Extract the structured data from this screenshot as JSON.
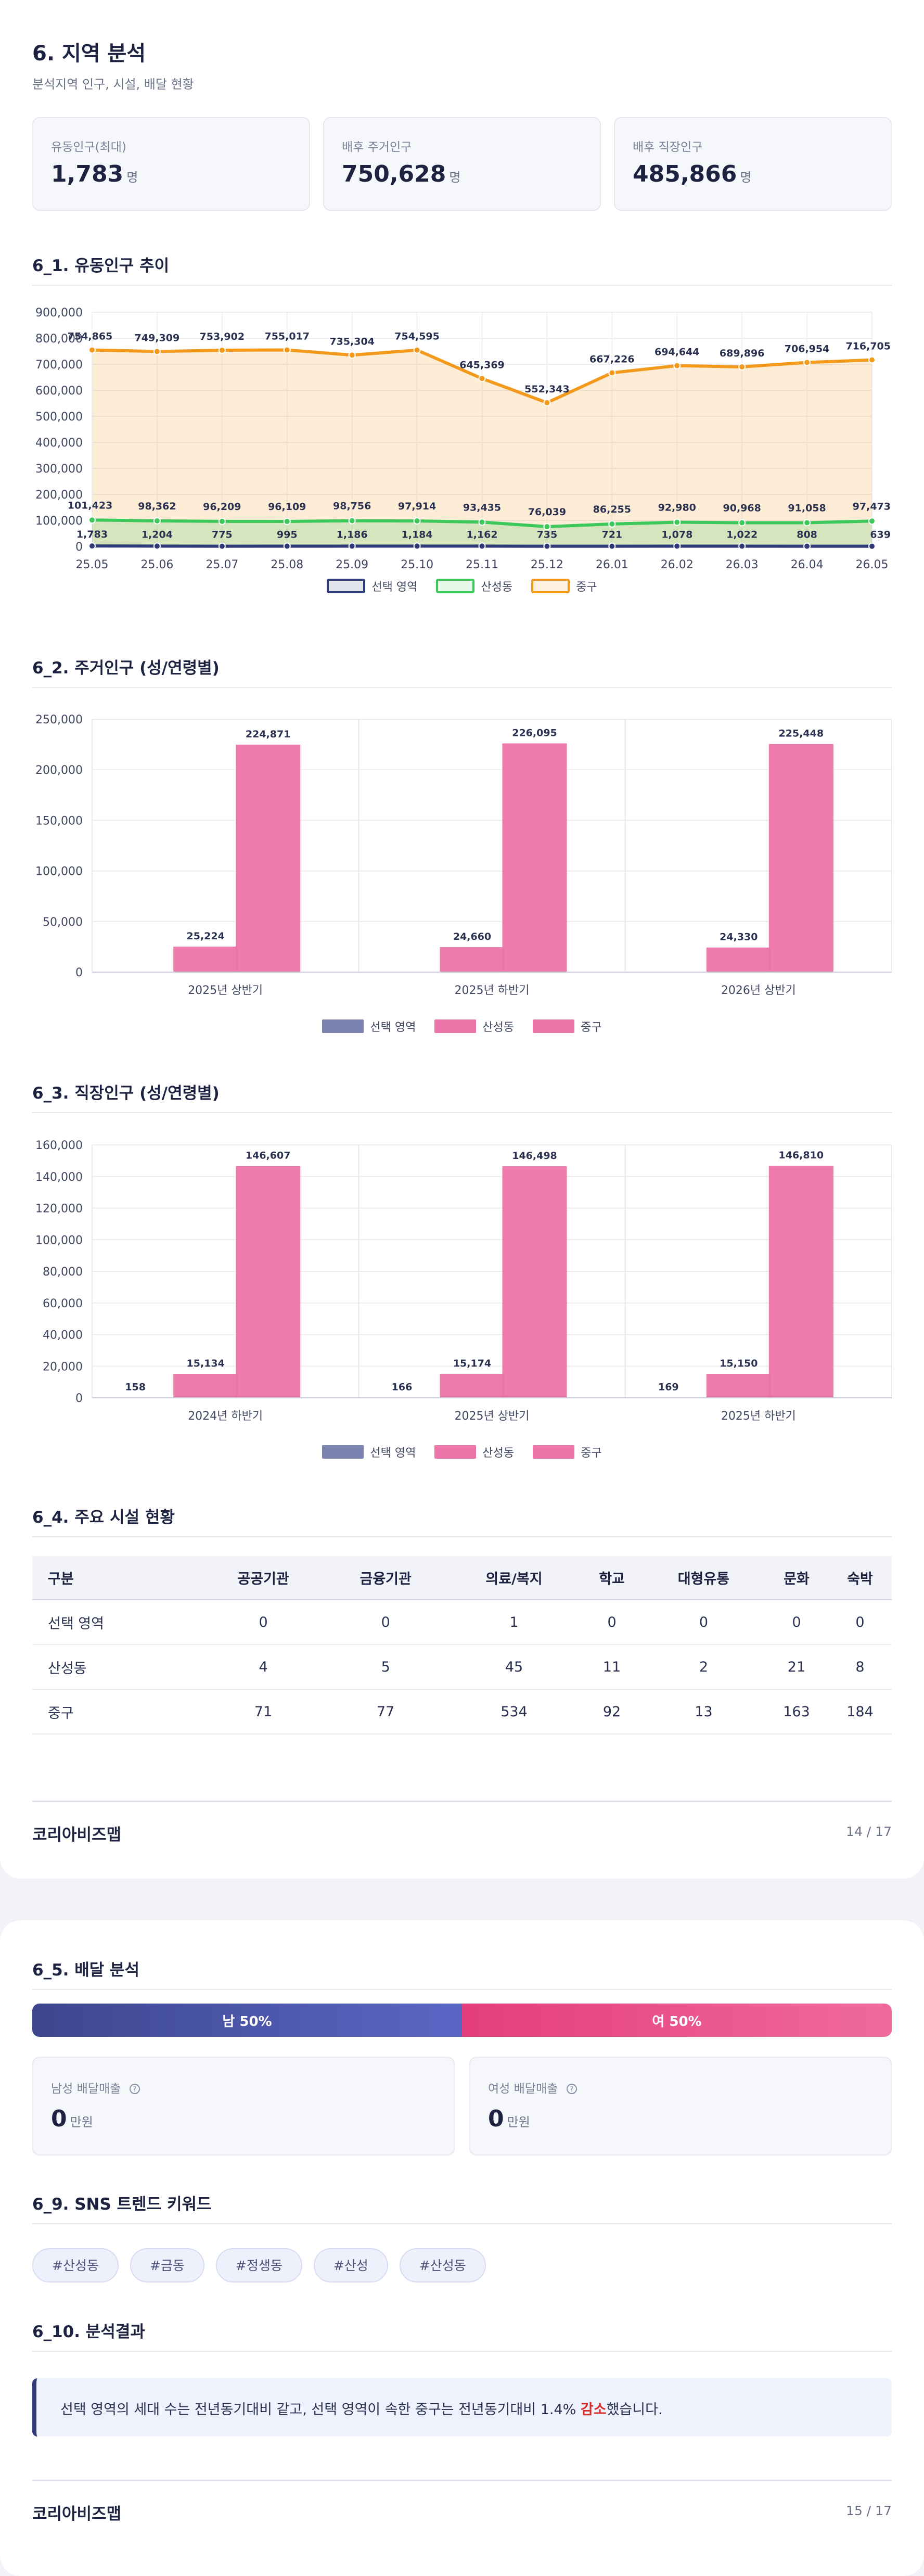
{
  "page1": {
    "title": "6. 지역 분석",
    "subtitle": "분석지역 인구, 시설, 배달 현황",
    "cards": [
      {
        "label": "유동인구(최대)",
        "value": "1,783",
        "unit": "명"
      },
      {
        "label": "배후 주거인구",
        "value": "750,628",
        "unit": "명"
      },
      {
        "label": "배후 직장인구",
        "value": "485,866",
        "unit": "명"
      }
    ],
    "sec_flow": "6_1. 유동인구 추이",
    "sec_res": "6_2. 주거인구 (성/연령별)",
    "sec_work": "6_3. 직장인구 (성/연령별)",
    "sec_fac": "6_4. 주요 시설 현황",
    "brand": "코리아비즈맵",
    "page_no": "14 / 17"
  },
  "chart_data": [
    {
      "type": "line",
      "title": "6_1. 유동인구 추이",
      "x": [
        "25.05",
        "25.06",
        "25.07",
        "25.08",
        "25.09",
        "25.10",
        "25.11",
        "25.12",
        "26.01",
        "26.02",
        "26.03",
        "26.04",
        "26.05"
      ],
      "ylim": [
        0,
        900000
      ],
      "yticks": [
        "0",
        "100,000",
        "200,000",
        "300,000",
        "400,000",
        "500,000",
        "600,000",
        "700,000",
        "800,000",
        "900,000"
      ],
      "legend_position": "bottom",
      "series": [
        {
          "name": "선택 영역",
          "color": "#2f3a78",
          "values": [
            1783,
            1204,
            775,
            995,
            1186,
            1184,
            1162,
            735,
            721,
            1078,
            1022,
            808,
            639
          ],
          "labels": [
            "1,783",
            "1,204",
            "775",
            "995",
            "1,186",
            "1,184",
            "1,162",
            "735",
            "721",
            "1,078",
            "1,022",
            "808",
            "639"
          ]
        },
        {
          "name": "산성동",
          "color": "#3cc85a",
          "values": [
            101423,
            98362,
            96209,
            96109,
            98756,
            97914,
            93435,
            76039,
            86255,
            92980,
            90968,
            91058,
            97473
          ],
          "labels": [
            "101,423",
            "98,362",
            "96,209",
            "96,109",
            "98,756",
            "97,914",
            "93,435",
            "76,039",
            "86,255",
            "92,980",
            "90,968",
            "91,058",
            "97,473"
          ]
        },
        {
          "name": "중구",
          "color": "#f39a1c",
          "values": [
            754865,
            749309,
            753902,
            755017,
            735304,
            754595,
            645369,
            552343,
            667226,
            694644,
            689896,
            706954,
            716705
          ],
          "labels": [
            "754,865",
            "749,309",
            "753,902",
            "755,017",
            "735,304",
            "754,595",
            "645,369",
            "552,343",
            "667,226",
            "694,644",
            "689,896",
            "706,954",
            "716,705"
          ]
        }
      ]
    },
    {
      "type": "bar",
      "title": "6_2. 주거인구 (성/연령별)",
      "categories": [
        "2025년 상반기",
        "2025년 하반기",
        "2026년 상반기"
      ],
      "ylim": [
        0,
        250000
      ],
      "yticks": [
        "0",
        "50,000",
        "100,000",
        "150,000",
        "200,000",
        "250,000"
      ],
      "legend_position": "bottom",
      "series": [
        {
          "name": "선택 영역",
          "color": "#7a83b0",
          "values": [
            0,
            0,
            0
          ],
          "labels": [
            "",
            "",
            ""
          ]
        },
        {
          "name": "산성동",
          "color": "#ec74a8",
          "values": [
            25224,
            24660,
            24330
          ],
          "labels": [
            "25,224",
            "24,660",
            "24,330"
          ]
        },
        {
          "name": "중구",
          "color": "#ec74a8",
          "values": [
            224871,
            226095,
            225448
          ],
          "labels": [
            "224,871",
            "226,095",
            "225,448"
          ]
        }
      ]
    },
    {
      "type": "bar",
      "title": "6_3. 직장인구 (성/연령별)",
      "categories": [
        "2024년 하반기",
        "2025년 상반기",
        "2025년 하반기"
      ],
      "ylim": [
        0,
        160000
      ],
      "yticks": [
        "0",
        "20,000",
        "40,000",
        "60,000",
        "80,000",
        "100,000",
        "120,000",
        "140,000",
        "160,000"
      ],
      "legend_position": "bottom",
      "series": [
        {
          "name": "선택 영역",
          "color": "#7a83b0",
          "values": [
            158,
            166,
            169
          ],
          "labels": [
            "158",
            "166",
            "169"
          ]
        },
        {
          "name": "산성동",
          "color": "#ec74a8",
          "values": [
            15134,
            15174,
            15150
          ],
          "labels": [
            "15,134",
            "15,174",
            "15,150"
          ]
        },
        {
          "name": "중구",
          "color": "#ec74a8",
          "values": [
            146607,
            146498,
            146810
          ],
          "labels": [
            "146,607",
            "146,498",
            "146,810"
          ]
        }
      ]
    }
  ],
  "facilities": {
    "headers": [
      "구분",
      "공공기관",
      "금융기관",
      "의료/복지",
      "학교",
      "대형유통",
      "문화",
      "숙박"
    ],
    "rows": [
      [
        "선택 영역",
        "0",
        "0",
        "1",
        "0",
        "0",
        "0",
        "0"
      ],
      [
        "산성동",
        "4",
        "5",
        "45",
        "11",
        "2",
        "21",
        "8"
      ],
      [
        "중구",
        "71",
        "77",
        "534",
        "92",
        "13",
        "163",
        "184"
      ]
    ]
  },
  "page2": {
    "sec_delivery": "6_5. 배달 분석",
    "male_bar": "남 50%",
    "female_bar": "여 50%",
    "male_share": 50,
    "female_share": 50,
    "male_label": "남성 배달매출",
    "female_label": "여성 배달매출",
    "male_value": "0",
    "female_value": "0",
    "money_unit": "만원",
    "sec_sns": "6_9. SNS 트렌드 키워드",
    "keywords": [
      "#산성동",
      "#금동",
      "#정생동",
      "#산성",
      "#산성동"
    ],
    "sec_result": "6_10. 분석결과",
    "result_pre": "선택 영역의 세대 수는 전년동기대비 같고, 선택 영역이 속한 중구는 전년동기대비 1.4% ",
    "result_em": "감소",
    "result_post": "했습니다.",
    "brand": "코리아비즈맵",
    "page_no": "15 / 17"
  },
  "colors": {
    "navy": "#2f3a78",
    "green": "#3cc85a",
    "orange": "#f39a1c",
    "pink": "#ec74a8",
    "female": "#e8457f",
    "male": "#4a56a8",
    "decrease": "#d72a2a"
  },
  "icons": [
    "info-circle-icon"
  ]
}
